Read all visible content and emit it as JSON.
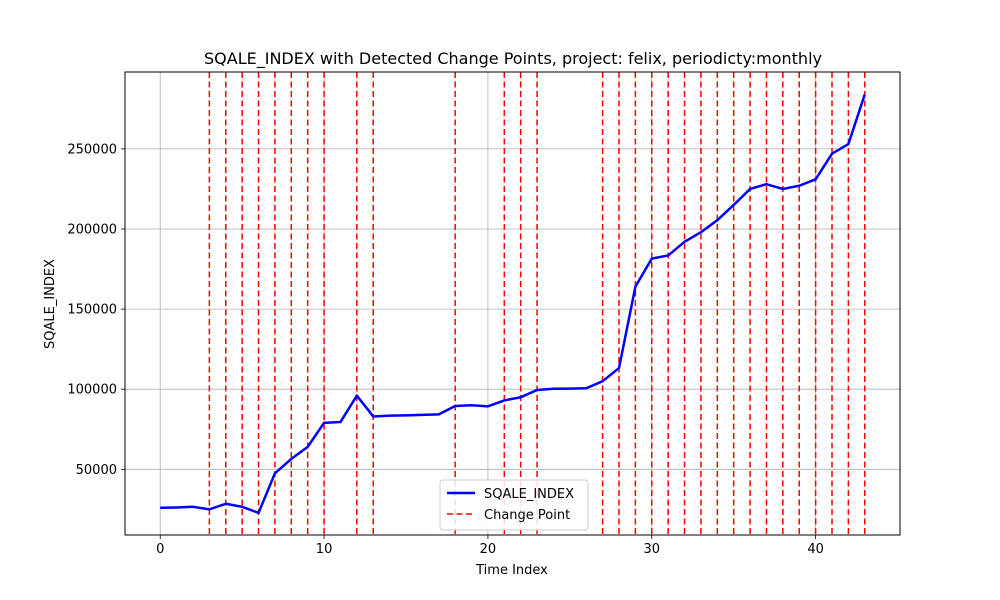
{
  "chart_data": {
    "type": "line",
    "title": "SQALE_INDEX with Detected Change Points, project: felix, periodicty:monthly",
    "xlabel": "Time Index",
    "ylabel": "SQALE_INDEX",
    "xlim": [
      -2.15,
      45.15
    ],
    "ylim": [
      9000,
      298000
    ],
    "xticks": [
      0,
      10,
      20,
      30,
      40
    ],
    "yticks": [
      50000,
      100000,
      150000,
      200000,
      250000
    ],
    "grid": true,
    "legend_position": "lower-center",
    "series": [
      {
        "name": "SQALE_INDEX",
        "color": "#0000ff",
        "x": [
          0,
          1,
          2,
          3,
          4,
          5,
          6,
          7,
          8,
          9,
          10,
          11,
          12,
          13,
          14,
          15,
          16,
          17,
          18,
          19,
          20,
          21,
          22,
          23,
          24,
          25,
          26,
          27,
          28,
          29,
          30,
          31,
          32,
          33,
          34,
          35,
          36,
          37,
          38,
          39,
          40,
          41,
          42,
          43
        ],
        "values": [
          26000,
          26200,
          26600,
          25000,
          28500,
          26600,
          22800,
          47500,
          56500,
          64000,
          79000,
          79500,
          96000,
          83000,
          83500,
          83700,
          84000,
          84300,
          89500,
          90000,
          89300,
          93000,
          95000,
          99500,
          100300,
          100400,
          100600,
          105000,
          113200,
          164000,
          181500,
          183500,
          192000,
          198000,
          205500,
          215000,
          225000,
          228000,
          225000,
          227000,
          231000,
          247000,
          253000,
          284000
        ]
      }
    ],
    "change_points": {
      "name": "Change Point",
      "color": "#ff0000",
      "x": [
        3,
        4,
        5,
        6,
        7,
        8,
        9,
        10,
        12,
        13,
        18,
        21,
        22,
        23,
        27,
        28,
        29,
        30,
        31,
        32,
        33,
        34,
        35,
        36,
        37,
        38,
        39,
        40,
        41,
        42,
        43
      ]
    }
  }
}
